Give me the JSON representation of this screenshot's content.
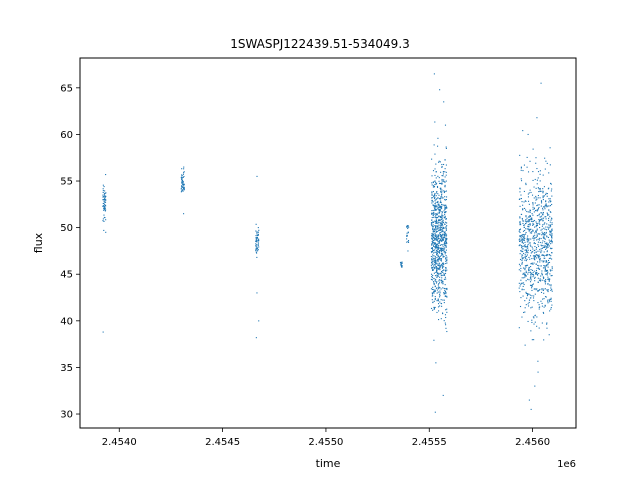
{
  "chart_data": {
    "type": "scatter",
    "title": "1SWASPJ122439.51-534049.3",
    "xlabel": "time",
    "ylabel": "flux",
    "x_offset_label": "1e6",
    "x_scale": 1000000,
    "xlim": [
      2.45381,
      2.45621
    ],
    "ylim": [
      28.5,
      68.2
    ],
    "xticks": [
      2.454,
      2.4545,
      2.455,
      2.4555,
      2.456
    ],
    "xtick_labels": [
      "2.4540",
      "2.4545",
      "2.4550",
      "2.4555",
      "2.4560"
    ],
    "yticks": [
      30,
      35,
      40,
      45,
      50,
      55,
      60,
      65
    ],
    "ytick_labels": [
      "30",
      "35",
      "40",
      "45",
      "50",
      "55",
      "60",
      "65"
    ],
    "grid": false,
    "marker_color": "#1f77b4",
    "clusters": [
      {
        "x_start": 2453920,
        "x_end": 2453935,
        "center": 52.8,
        "spread": 1.6,
        "count": 60,
        "outliers": [
          38.8,
          49.5,
          55.7
        ]
      },
      {
        "x_start": 2454300,
        "x_end": 2454315,
        "center": 54.8,
        "spread": 1.0,
        "count": 50,
        "outliers": [
          51.5,
          56.5
        ]
      },
      {
        "x_start": 2454660,
        "x_end": 2454675,
        "center": 48.5,
        "spread": 1.3,
        "count": 55,
        "outliers": [
          38.2,
          40.0,
          43.0,
          55.5
        ]
      },
      {
        "x_start": 2455360,
        "x_end": 2455370,
        "center": 46.0,
        "spread": 0.4,
        "count": 15,
        "outliers": []
      },
      {
        "x_start": 2455390,
        "x_end": 2455400,
        "center": 49.5,
        "spread": 1.2,
        "count": 20,
        "outliers": [
          47.5
        ]
      },
      {
        "x_start": 2455510,
        "x_end": 2455585,
        "center": 48.8,
        "spread": 4.5,
        "count": 900,
        "outliers": [
          30.2,
          32.0,
          35.5,
          58.5,
          61.0,
          63.5,
          64.8,
          66.5
        ]
      },
      {
        "x_start": 2455935,
        "x_end": 2456095,
        "center": 48.3,
        "spread": 4.5,
        "count": 900,
        "outliers": [
          30.5,
          31.5,
          33.0,
          34.5,
          60.0,
          61.8,
          65.5
        ]
      }
    ]
  }
}
